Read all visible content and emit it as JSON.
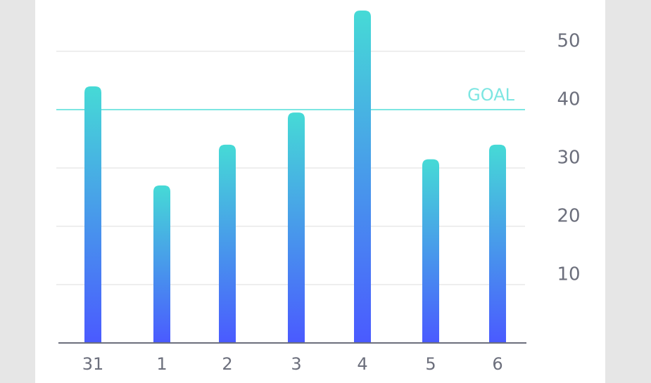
{
  "chart_data": {
    "type": "bar",
    "categories": [
      "31",
      "1",
      "2",
      "3",
      "4",
      "5",
      "6"
    ],
    "values": [
      44,
      27,
      34,
      39.5,
      57,
      31.5,
      34
    ],
    "color_top": "#46dad6",
    "color_bottom": "#4a5aff",
    "ylim": [
      0,
      58.8
    ],
    "yticks": [
      10,
      20,
      30,
      40,
      50
    ],
    "grid": true,
    "goal": {
      "label": "GOAL",
      "value": 40,
      "color": "#7de6e2"
    }
  }
}
